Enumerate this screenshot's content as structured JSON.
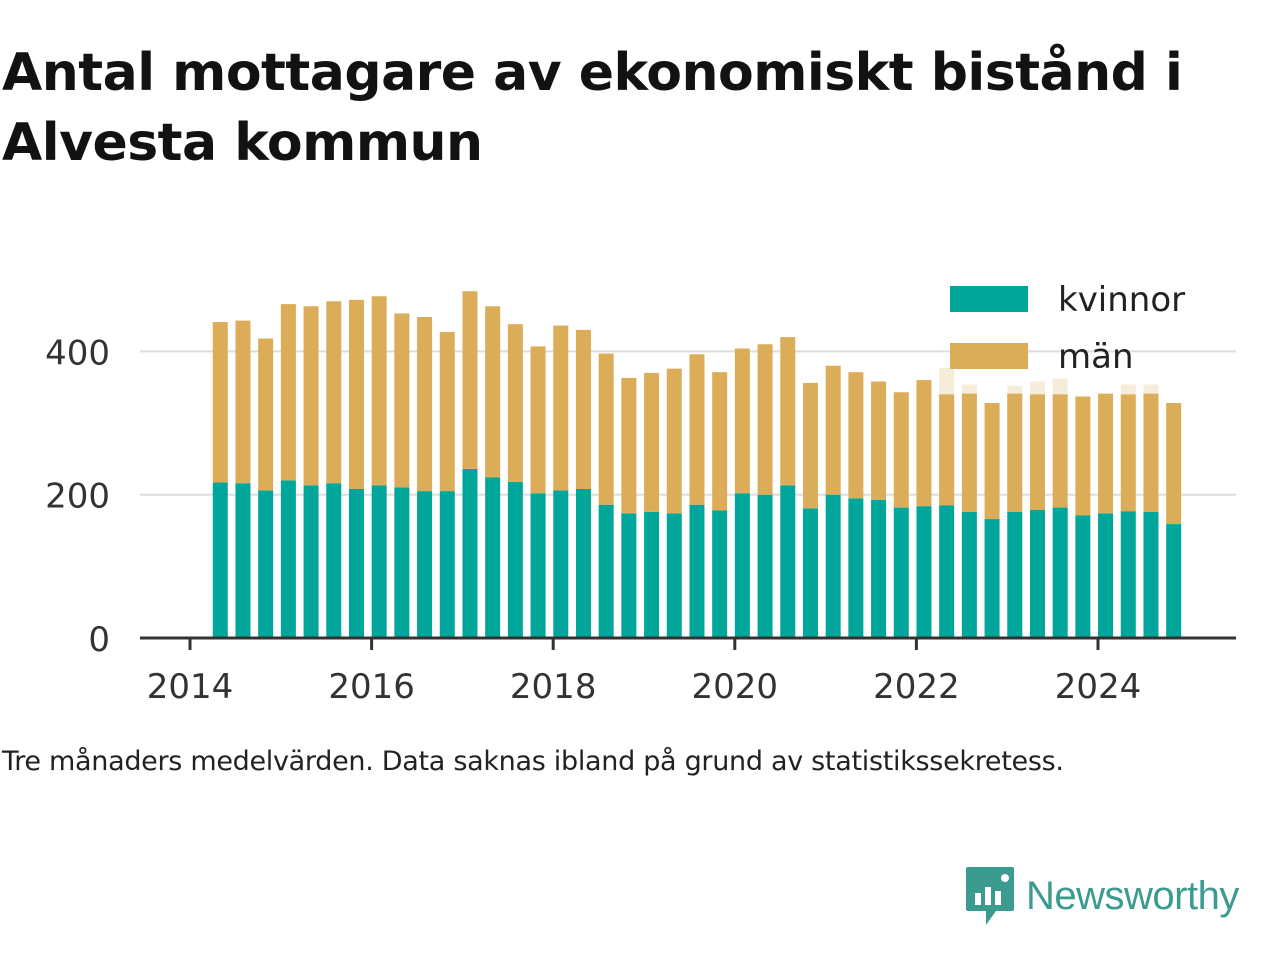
{
  "title": "Antal mottagare av ekonomiskt bistånd i Alvesta kommun",
  "caption": "Tre månaders medelvärden. Data saknas ibland på grund av statistikssekretess.",
  "brand": {
    "name": "Newsworthy",
    "icon": "newsworthy-logo-icon"
  },
  "colors": {
    "kvinnor": "#00a69a",
    "man": "#dbad59",
    "missing": "#f6ecda",
    "grid": "#dddddd",
    "axis": "#333333"
  },
  "chart_data": {
    "type": "bar",
    "stacked": true,
    "x_ticks": [
      "2014",
      "2016",
      "2018",
      "2020",
      "2022",
      "2024"
    ],
    "y_ticks": [
      "0",
      "200",
      "400"
    ],
    "ylim": [
      0,
      500
    ],
    "grid": "horizontal",
    "legend_position": "top-right",
    "categories": [
      "2014-05",
      "2014-08",
      "2014-11",
      "2015-02",
      "2015-05",
      "2015-08",
      "2015-11",
      "2016-02",
      "2016-05",
      "2016-08",
      "2016-11",
      "2017-02",
      "2017-05",
      "2017-08",
      "2017-11",
      "2018-02",
      "2018-05",
      "2018-08",
      "2018-11",
      "2019-02",
      "2019-05",
      "2019-08",
      "2019-11",
      "2020-02",
      "2020-05",
      "2020-08",
      "2020-11",
      "2021-02",
      "2021-05",
      "2021-08",
      "2021-11",
      "2022-02",
      "2022-05",
      "2022-08",
      "2022-11",
      "2023-02",
      "2023-05",
      "2023-08",
      "2023-11",
      "2024-02",
      "2024-05",
      "2024-08",
      "2024-11"
    ],
    "series": [
      {
        "name": "kvinnor",
        "values": [
          217,
          216,
          206,
          220,
          213,
          216,
          208,
          213,
          210,
          205,
          205,
          236,
          224,
          218,
          202,
          206,
          208,
          186,
          174,
          176,
          174,
          186,
          178,
          202,
          200,
          213,
          181,
          200,
          195,
          193,
          182,
          184,
          185,
          176,
          166,
          176,
          179,
          182,
          171,
          174,
          177,
          176,
          159
        ]
      },
      {
        "name": "män",
        "values": [
          224,
          227,
          212,
          246,
          250,
          254,
          264,
          264,
          243,
          243,
          222,
          248,
          239,
          220,
          205,
          230,
          222,
          211,
          189,
          194,
          202,
          210,
          193,
          202,
          210,
          207,
          175,
          180,
          176,
          165,
          161,
          176,
          155,
          165,
          162,
          165,
          161,
          158,
          166,
          167,
          163,
          165,
          169
        ]
      }
    ],
    "missing_overlay": {
      "2022-05": 377,
      "2022-08": 354,
      "2023-02": 352,
      "2023-05": 358,
      "2023-08": 362,
      "2024-05": 354,
      "2024-08": 354
    }
  }
}
